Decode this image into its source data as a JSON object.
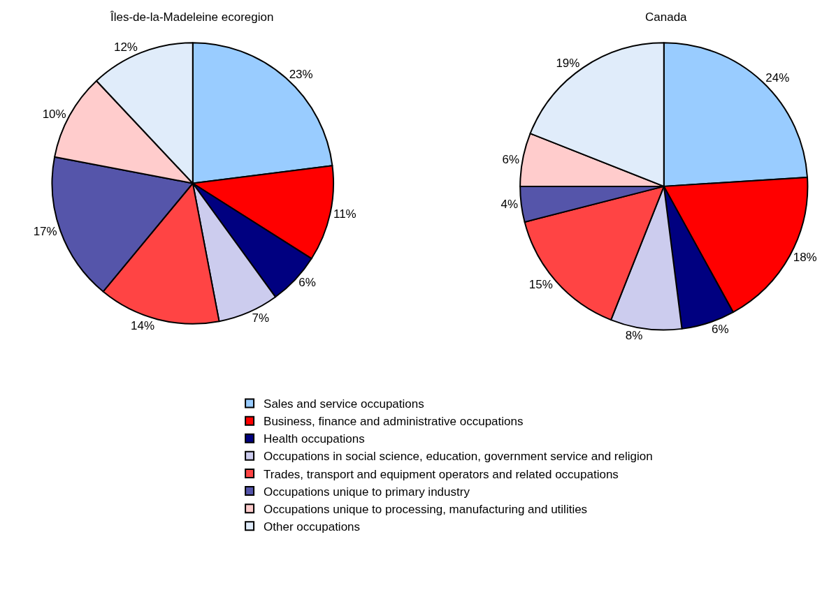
{
  "chart_data": [
    {
      "type": "pie",
      "title": "Îles-de-la-Madeleine ecoregion",
      "categories": [
        "Sales and service occupations",
        "Business, finance and administrative occupations",
        "Health occupations",
        "Occupations in social science, education, government service and religion",
        "Trades, transport and equipment operators and related occupations",
        "Occupations unique to primary industry",
        "Occupations unique to processing, manufacturing and utilities",
        "Other occupations"
      ],
      "values": [
        23,
        11,
        6,
        7,
        14,
        17,
        10,
        12
      ],
      "value_labels": [
        "23%",
        "11%",
        "6%",
        "7%",
        "14%",
        "17%",
        "10%",
        "12%"
      ],
      "colors": [
        "#99ccff",
        "#ff0000",
        "#000080",
        "#ccccee",
        "#ff4444",
        "#5555aa",
        "#ffcccc",
        "#e0ecfa"
      ],
      "legend": "bottom"
    },
    {
      "type": "pie",
      "title": "Canada",
      "categories": [
        null,
        null,
        null,
        null,
        null,
        null,
        null,
        null
      ],
      "values": [
        24,
        18,
        6,
        8,
        15,
        4,
        6,
        19
      ],
      "value_labels": [
        "24%",
        "18%",
        "6%",
        "8%",
        "15%",
        "4%",
        "6%",
        "19%"
      ],
      "colors": [
        "#99ccff",
        "#ff0000",
        "#000080",
        "#ccccee",
        "#ff4444",
        "#5555aa",
        "#ffcccc",
        "#e0ecfa"
      ]
    }
  ]
}
